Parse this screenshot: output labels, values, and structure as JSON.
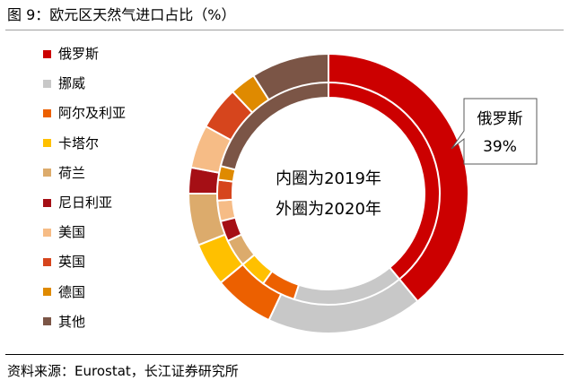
{
  "title": "图 9：欧元区天然气进口占比（%）",
  "source": "资料来源：Eurostat，长江证券研究所",
  "chart_data": {
    "type": "pie",
    "style": "nested-donut",
    "title": "欧元区天然气进口占比（%）",
    "center_labels": [
      "内圈为2019年",
      "外圈为2020年"
    ],
    "callout": {
      "name": "俄罗斯",
      "value_label": "39%"
    },
    "categories": [
      "俄罗斯",
      "挪威",
      "阿尔及利亚",
      "卡塔尔",
      "荷兰",
      "尼日利亚",
      "美国",
      "英国",
      "德国",
      "其他"
    ],
    "colors": [
      "#cc0000",
      "#c8c8c8",
      "#ec6000",
      "#ffc000",
      "#dcab6c",
      "#a50f15",
      "#f6bc86",
      "#d6451d",
      "#df8a00",
      "#7b5546"
    ],
    "series": [
      {
        "name": "2019年（内圈）",
        "values": [
          39,
          16,
          5,
          4,
          4,
          3,
          3,
          3,
          2,
          21
        ]
      },
      {
        "name": "2020年（外圈）",
        "values": [
          39,
          18,
          7,
          5,
          6,
          3,
          5,
          5,
          3,
          9
        ]
      }
    ]
  }
}
